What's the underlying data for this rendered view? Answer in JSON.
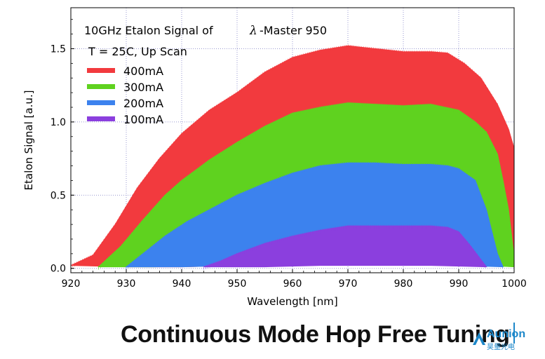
{
  "chart_data": {
    "type": "area",
    "title_line1": "10GHz Etalon Signal of",
    "title_symbol": "λ",
    "title_line1b": "-Master 950",
    "title_line2": "T = 25C, Up Scan",
    "xlabel": "Wavelength [nm]",
    "ylabel": "Etalon Signal [a.u.]",
    "xlim": [
      920,
      1000
    ],
    "ylim": [
      -0.03,
      1.78
    ],
    "xticks": [
      "920",
      "930",
      "940",
      "950",
      "960",
      "970",
      "980",
      "990",
      "1000"
    ],
    "yticks": [
      "0.0",
      "0.5",
      "1.0",
      "1.5"
    ],
    "grid": true,
    "legend_position": "top-left",
    "series": [
      {
        "name": "400mA",
        "color": "#f23a3e",
        "upper": [
          [
            920,
            0.02
          ],
          [
            924,
            0.09
          ],
          [
            928,
            0.3
          ],
          [
            932,
            0.55
          ],
          [
            936,
            0.75
          ],
          [
            940,
            0.92
          ],
          [
            945,
            1.08
          ],
          [
            950,
            1.2
          ],
          [
            955,
            1.34
          ],
          [
            960,
            1.44
          ],
          [
            965,
            1.49
          ],
          [
            970,
            1.52
          ],
          [
            975,
            1.5
          ],
          [
            980,
            1.48
          ],
          [
            985,
            1.48
          ],
          [
            988,
            1.47
          ],
          [
            991,
            1.4
          ],
          [
            994,
            1.3
          ],
          [
            997,
            1.12
          ],
          [
            999,
            0.95
          ],
          [
            1000,
            0.82
          ]
        ],
        "lower": [
          [
            920,
            0.02
          ],
          [
            930,
            0.01
          ],
          [
            940,
            0.01
          ],
          [
            950,
            0.02
          ],
          [
            960,
            0.03
          ],
          [
            970,
            0.04
          ],
          [
            980,
            0.04
          ],
          [
            990,
            0.04
          ],
          [
            995,
            0.03
          ],
          [
            998,
            0.02
          ],
          [
            1000,
            0.01
          ]
        ]
      },
      {
        "name": "300mA",
        "color": "#5fd21f",
        "upper": [
          [
            925,
            0.01
          ],
          [
            929,
            0.15
          ],
          [
            933,
            0.33
          ],
          [
            937,
            0.5
          ],
          [
            940,
            0.6
          ],
          [
            945,
            0.74
          ],
          [
            950,
            0.86
          ],
          [
            955,
            0.97
          ],
          [
            960,
            1.06
          ],
          [
            965,
            1.1
          ],
          [
            970,
            1.13
          ],
          [
            975,
            1.12
          ],
          [
            980,
            1.11
          ],
          [
            985,
            1.12
          ],
          [
            990,
            1.08
          ],
          [
            993,
            1.0
          ],
          [
            995,
            0.93
          ],
          [
            997,
            0.78
          ],
          [
            998,
            0.6
          ],
          [
            999,
            0.4
          ],
          [
            1000,
            0.08
          ]
        ],
        "lower": [
          [
            925,
            0.01
          ],
          [
            935,
            0.01
          ],
          [
            945,
            0.02
          ],
          [
            955,
            0.02
          ],
          [
            965,
            0.03
          ],
          [
            975,
            0.03
          ],
          [
            985,
            0.03
          ],
          [
            995,
            0.02
          ],
          [
            1000,
            0.01
          ]
        ]
      },
      {
        "name": "200mA",
        "color": "#3c82ee",
        "upper": [
          [
            930,
            0.01
          ],
          [
            933,
            0.1
          ],
          [
            937,
            0.22
          ],
          [
            941,
            0.32
          ],
          [
            945,
            0.4
          ],
          [
            950,
            0.5
          ],
          [
            955,
            0.58
          ],
          [
            960,
            0.65
          ],
          [
            965,
            0.7
          ],
          [
            970,
            0.72
          ],
          [
            975,
            0.72
          ],
          [
            980,
            0.71
          ],
          [
            985,
            0.71
          ],
          [
            988,
            0.7
          ],
          [
            990,
            0.68
          ],
          [
            993,
            0.6
          ],
          [
            994,
            0.5
          ],
          [
            995,
            0.4
          ],
          [
            996,
            0.25
          ],
          [
            997,
            0.1
          ],
          [
            998,
            0.01
          ]
        ],
        "lower": [
          [
            930,
            0.01
          ],
          [
            940,
            0.01
          ],
          [
            950,
            0.02
          ],
          [
            960,
            0.02
          ],
          [
            970,
            0.03
          ],
          [
            980,
            0.03
          ],
          [
            990,
            0.02
          ],
          [
            998,
            0.01
          ]
        ]
      },
      {
        "name": "100mA",
        "color": "#8b3fde",
        "upper": [
          [
            944,
            0.01
          ],
          [
            947,
            0.05
          ],
          [
            950,
            0.1
          ],
          [
            955,
            0.17
          ],
          [
            960,
            0.22
          ],
          [
            965,
            0.26
          ],
          [
            970,
            0.29
          ],
          [
            975,
            0.29
          ],
          [
            980,
            0.29
          ],
          [
            985,
            0.29
          ],
          [
            988,
            0.28
          ],
          [
            990,
            0.25
          ],
          [
            992,
            0.16
          ],
          [
            994,
            0.06
          ],
          [
            995,
            0.01
          ]
        ],
        "lower": [
          [
            944,
            0.01
          ],
          [
            955,
            0.01
          ],
          [
            965,
            0.02
          ],
          [
            975,
            0.02
          ],
          [
            985,
            0.02
          ],
          [
            995,
            0.01
          ]
        ]
      }
    ]
  },
  "footer": {
    "title": "Continuous Mode Hop Free Tuning",
    "logo_text": "Aunion",
    "logo_sub": "昊量光电"
  }
}
